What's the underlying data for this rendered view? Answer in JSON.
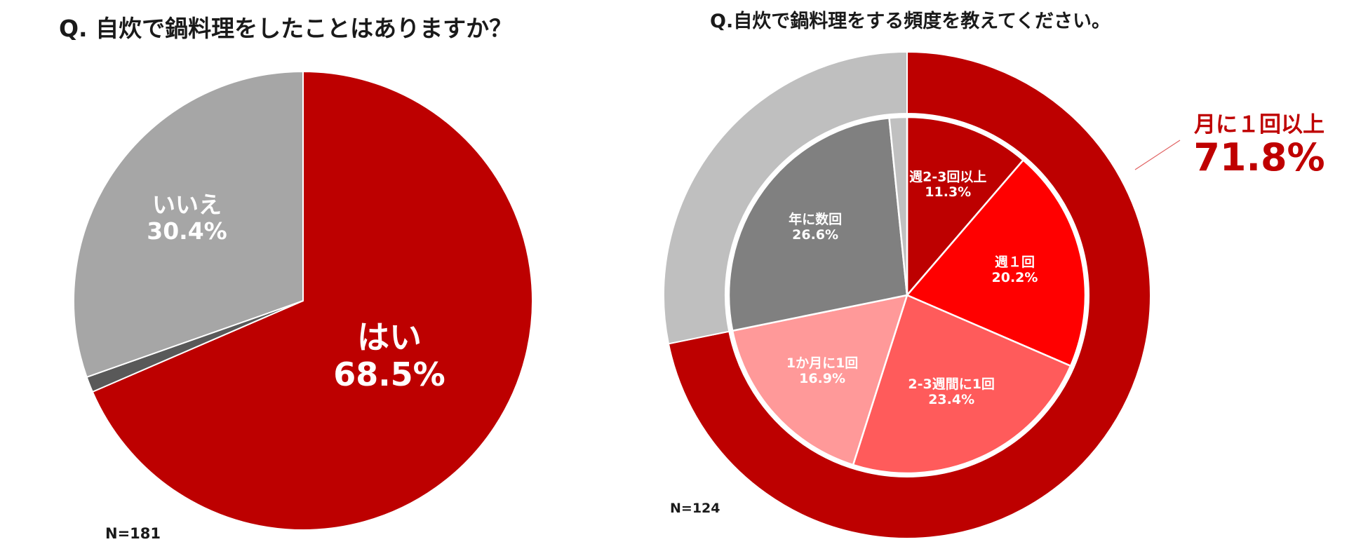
{
  "chart_data": [
    {
      "type": "pie",
      "title": "Q. 自炊で鍋料理をしたことはありますか？",
      "sample_note": "N=181",
      "slices": [
        {
          "label": "はい",
          "value": 68.5,
          "value_label": "68.5%",
          "color": "#bd0000"
        },
        {
          "label": "",
          "value": 1.1,
          "value_label": "",
          "color": "#595959"
        },
        {
          "label": "いいえ",
          "value": 30.4,
          "value_label": "30.4%",
          "color": "#a6a6a6"
        }
      ]
    },
    {
      "type": "pie",
      "title": "Q.自炊で鍋料理をする頻度を教えてください。",
      "sample_note": "N=124",
      "inner": [
        {
          "label": "週2-3回以上",
          "value": 11.3,
          "value_label": "11.3%",
          "color": "#bd0000"
        },
        {
          "label": "週１回",
          "value": 20.2,
          "value_label": "20.2%",
          "color": "#ff0000"
        },
        {
          "label": "2-3週間に1回",
          "value": 23.4,
          "value_label": "23.4%",
          "color": "#ff5b5b"
        },
        {
          "label": "1か月に1回",
          "value": 16.9,
          "value_label": "16.9%",
          "color": "#ff9999"
        },
        {
          "label": "年に数回",
          "value": 26.6,
          "value_label": "26.6%",
          "color": "#808080"
        },
        {
          "label": "",
          "value": 1.6,
          "value_label": "",
          "color": "#c0c0c0"
        }
      ],
      "outer": [
        {
          "label": "月に１回以上",
          "value": 71.8,
          "value_label": "71.8%",
          "color": "#bd0000"
        },
        {
          "label": "",
          "value": 28.2,
          "value_label": "",
          "color": "#bfbfbf"
        }
      ]
    }
  ]
}
